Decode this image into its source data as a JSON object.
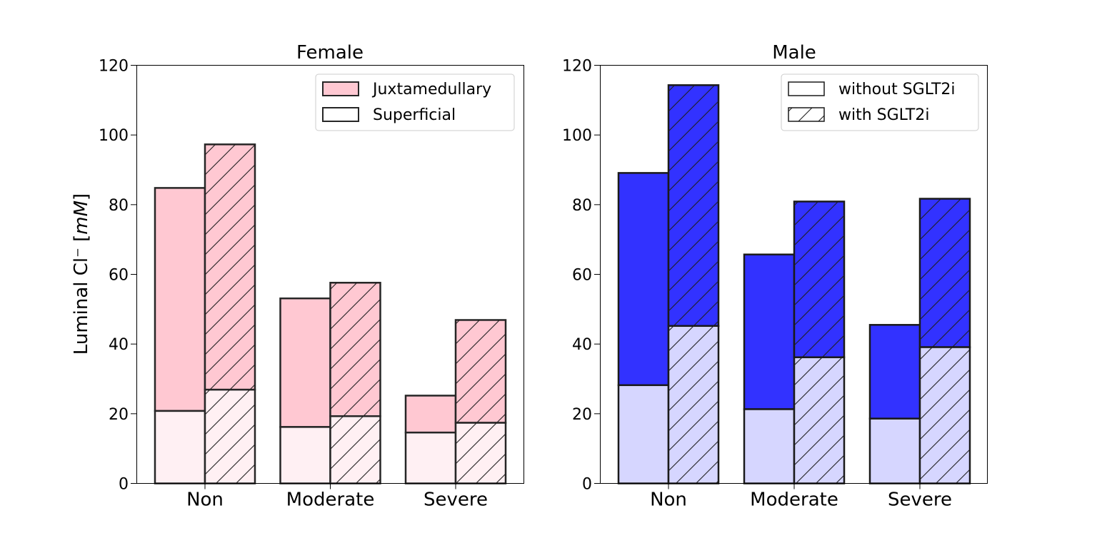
{
  "chart_data": [
    {
      "type": "bar",
      "stacked": true,
      "title": "Female",
      "ylabel": "Luminal Cl⁻  [mM]",
      "xlabel": "",
      "ylim": [
        0,
        120
      ],
      "yticks": [
        0,
        20,
        40,
        60,
        80,
        100,
        120
      ],
      "categories": [
        "Non",
        "Moderate",
        "Severe"
      ],
      "colors": {
        "superficial": "#fff0f3",
        "juxtamedullary": "#ffc8d2",
        "edge": "#262626"
      },
      "legend": {
        "position": "top-right",
        "entries": [
          "Juxtamedullary",
          "Superficial"
        ]
      },
      "groups": [
        {
          "name": "without SGLT2i",
          "hatch": false,
          "superficial": [
            20.8,
            16.2,
            14.6
          ],
          "total": [
            84.8,
            53.1,
            25.2
          ]
        },
        {
          "name": "with SGLT2i",
          "hatch": true,
          "superficial": [
            26.9,
            19.3,
            17.4
          ],
          "total": [
            97.3,
            57.6,
            46.9
          ]
        }
      ]
    },
    {
      "type": "bar",
      "stacked": true,
      "title": "Male",
      "ylabel": "",
      "xlabel": "",
      "ylim": [
        0,
        120
      ],
      "yticks": [
        0,
        20,
        40,
        60,
        80,
        100,
        120
      ],
      "categories": [
        "Non",
        "Moderate",
        "Severe"
      ],
      "colors": {
        "superficial": "#d6d6ff",
        "juxtamedullary": "#3232ff",
        "edge": "#1a1a1a"
      },
      "legend": {
        "position": "top-right",
        "entries": [
          "without SGLT2i",
          "with SGLT2i"
        ]
      },
      "groups": [
        {
          "name": "without SGLT2i",
          "hatch": false,
          "superficial": [
            28.2,
            21.3,
            18.6
          ],
          "total": [
            89.1,
            65.7,
            45.5
          ]
        },
        {
          "name": "with SGLT2i",
          "hatch": true,
          "superficial": [
            45.2,
            36.2,
            39.1
          ],
          "total": [
            114.3,
            80.9,
            81.7
          ]
        }
      ]
    }
  ]
}
